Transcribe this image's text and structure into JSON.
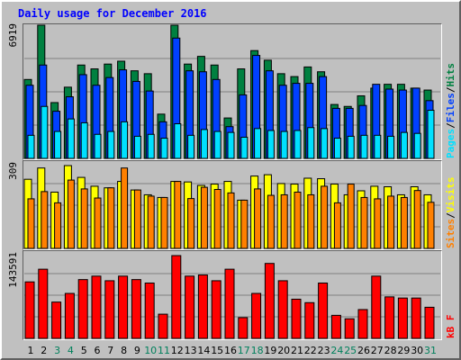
{
  "title": "Daily usage for December 2016",
  "colors": {
    "hits": "#008040",
    "files": "#0040ff",
    "pages": "#00e0ff",
    "visits": "#ffff00",
    "sites": "#ff8000",
    "kbf": "#ff0000",
    "weekday": "#000000",
    "weekend": "#00805c"
  },
  "panels": {
    "top": {
      "ymax_label": "6919",
      "legend": [
        "Pages",
        "Files",
        "Hits"
      ],
      "separator": "/"
    },
    "mid": {
      "ymax_label": "309",
      "legend": [
        "Sites",
        "Visits"
      ],
      "separator": "/"
    },
    "bot": {
      "ymax_label": "143591",
      "legend": [
        "kB F"
      ]
    }
  },
  "chart_data": [
    {
      "type": "bar",
      "title": "Daily usage for December 2016",
      "categories": [
        "1",
        "2",
        "3",
        "4",
        "5",
        "6",
        "7",
        "8",
        "9",
        "10",
        "11",
        "12",
        "13",
        "14",
        "15",
        "16",
        "17",
        "18",
        "19",
        "20",
        "21",
        "22",
        "23",
        "24",
        "25",
        "26",
        "27",
        "28",
        "29",
        "30",
        "31"
      ],
      "weekend": [
        false,
        false,
        true,
        true,
        false,
        false,
        false,
        false,
        false,
        true,
        true,
        false,
        false,
        false,
        false,
        false,
        true,
        true,
        false,
        false,
        false,
        false,
        false,
        true,
        true,
        false,
        false,
        false,
        false,
        false,
        true
      ],
      "ylim": [
        0,
        6919
      ],
      "series": [
        {
          "name": "Hits",
          "values": [
            4100,
            6919,
            2900,
            3700,
            4850,
            4650,
            4900,
            5050,
            4550,
            4400,
            2300,
            6919,
            4900,
            5300,
            4850,
            2100,
            4650,
            5600,
            5100,
            4400,
            4250,
            4750,
            4500,
            2800,
            2700,
            3250,
            3650,
            3850,
            3850,
            3650,
            3550
          ]
        },
        {
          "name": "Files",
          "values": [
            3800,
            4850,
            2450,
            3200,
            4350,
            3800,
            4200,
            4600,
            4000,
            3500,
            1900,
            6250,
            4550,
            4500,
            4100,
            1650,
            3300,
            5350,
            4550,
            3800,
            3900,
            3900,
            4250,
            2600,
            2600,
            2750,
            3850,
            3600,
            3550,
            3650,
            3000
          ]
        },
        {
          "name": "Pages",
          "values": [
            1200,
            2700,
            1400,
            2050,
            1850,
            1250,
            1400,
            1900,
            1150,
            1250,
            1050,
            1800,
            1200,
            1500,
            1400,
            1350,
            1100,
            1550,
            1450,
            1400,
            1450,
            1600,
            1550,
            1050,
            1150,
            1200,
            1200,
            1150,
            1350,
            1300,
            2500
          ]
        }
      ]
    },
    {
      "type": "bar",
      "categories": [
        "1",
        "2",
        "3",
        "4",
        "5",
        "6",
        "7",
        "8",
        "9",
        "10",
        "11",
        "12",
        "13",
        "14",
        "15",
        "16",
        "17",
        "18",
        "19",
        "20",
        "21",
        "22",
        "23",
        "24",
        "25",
        "26",
        "27",
        "28",
        "29",
        "30",
        "31"
      ],
      "ylim": [
        0,
        309
      ],
      "series": [
        {
          "name": "Visits",
          "values": [
            258,
            300,
            210,
            309,
            265,
            232,
            226,
            250,
            218,
            200,
            190,
            250,
            248,
            235,
            240,
            250,
            180,
            270,
            275,
            242,
            240,
            262,
            260,
            240,
            200,
            215,
            232,
            230,
            200,
            230,
            200
          ]
        },
        {
          "name": "Sites",
          "values": [
            185,
            212,
            170,
            255,
            222,
            188,
            226,
            300,
            218,
            195,
            190,
            250,
            186,
            228,
            220,
            207,
            180,
            222,
            198,
            200,
            210,
            200,
            232,
            170,
            240,
            190,
            185,
            195,
            190,
            216,
            172
          ]
        }
      ]
    },
    {
      "type": "bar",
      "categories": [
        "1",
        "2",
        "3",
        "4",
        "5",
        "6",
        "7",
        "8",
        "9",
        "10",
        "11",
        "12",
        "13",
        "14",
        "15",
        "16",
        "17",
        "18",
        "19",
        "20",
        "21",
        "22",
        "23",
        "24",
        "25",
        "26",
        "27",
        "28",
        "29",
        "30",
        "31"
      ],
      "ylim": [
        0,
        143591
      ],
      "series": [
        {
          "name": "kB F",
          "values": [
            98000,
            120000,
            63000,
            78000,
            102000,
            108000,
            100000,
            108000,
            102000,
            96000,
            42000,
            143591,
            108000,
            110000,
            100000,
            120000,
            36000,
            78000,
            130000,
            100000,
            68000,
            62000,
            96000,
            40000,
            34000,
            50000,
            108000,
            72000,
            70000,
            70000,
            54000
          ]
        }
      ]
    }
  ]
}
